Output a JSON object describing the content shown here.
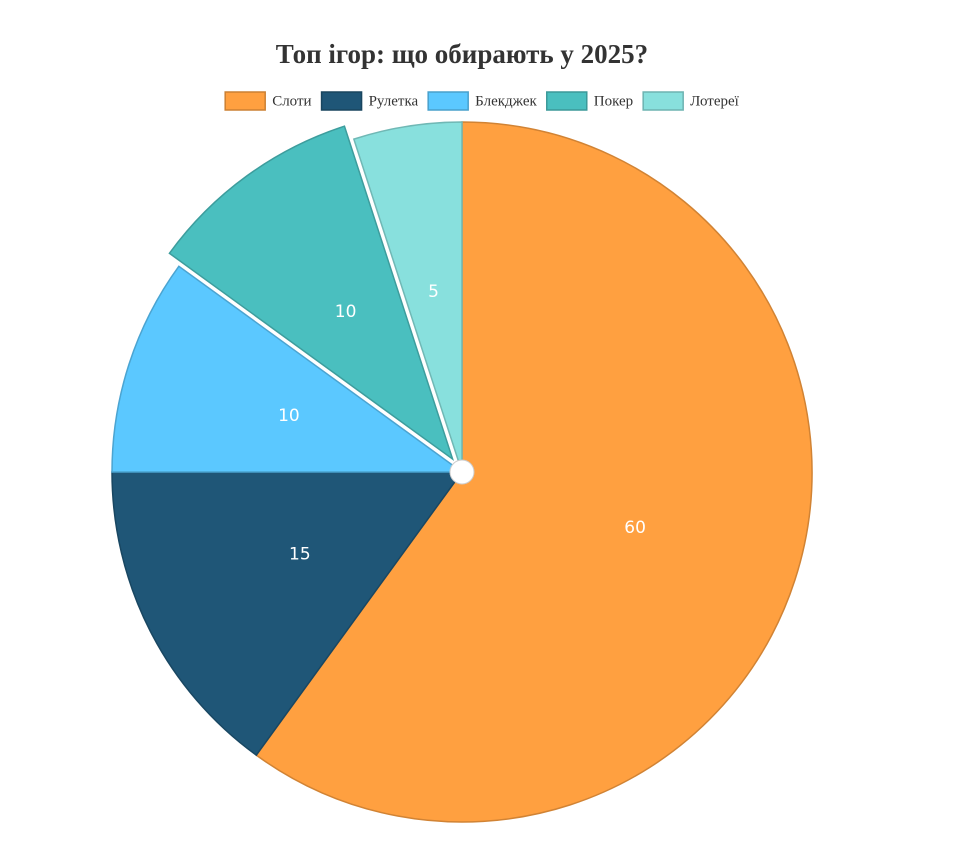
{
  "chart_data": {
    "type": "pie",
    "title": "Топ ігор: що обирають у 2025?",
    "categories": [
      "Слоти",
      "Рулетка",
      "Блекджек",
      "Покер",
      "Лотереї"
    ],
    "values": [
      60,
      15,
      10,
      10,
      5
    ],
    "colors": [
      "#ffa040",
      "#1f5677",
      "#5bc8ff",
      "#4abfbf",
      "#88e0dd"
    ],
    "exploded": [
      false,
      false,
      false,
      true,
      false
    ],
    "legend": "top"
  }
}
